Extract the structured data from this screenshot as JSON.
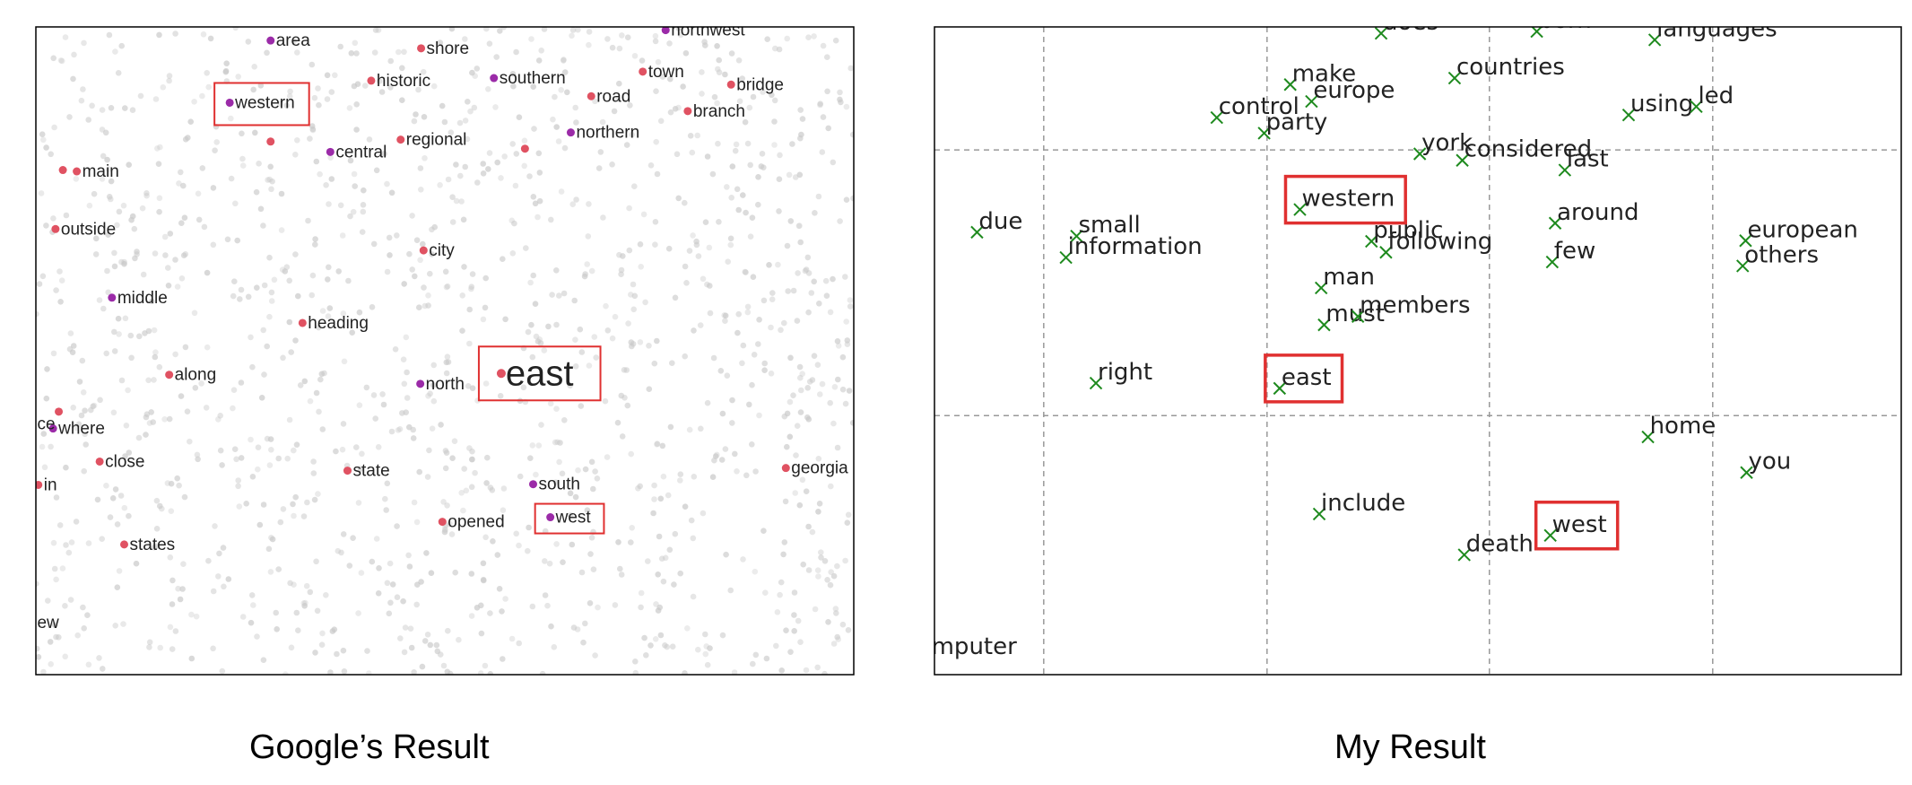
{
  "captions": {
    "left": "Google’s Result",
    "right": "My Result"
  },
  "colors": {
    "background_dot": "#c8c8c8",
    "point_red": "#e05262",
    "point_purple": "#9b2ba8",
    "marker_green": "#1e8a1e",
    "highlight_box": "#e03030",
    "grid": "#999999"
  },
  "chart_data": [
    {
      "type": "scatter",
      "title": "",
      "xlabel": "",
      "ylabel": "",
      "grid": false,
      "highlighted": [
        "western",
        "east",
        "west"
      ],
      "background_points": "dense light-gray points (unlabeled)",
      "points": [
        {
          "label": "northwest",
          "x": 0.77,
          "y": 0.005,
          "color": "purple"
        },
        {
          "label": "area",
          "x": 0.287,
          "y": 0.021,
          "color": "purple"
        },
        {
          "label": "shore",
          "x": 0.471,
          "y": 0.033,
          "color": "red"
        },
        {
          "label": "town",
          "x": 0.742,
          "y": 0.069,
          "color": "red"
        },
        {
          "label": "historic",
          "x": 0.41,
          "y": 0.083,
          "color": "red"
        },
        {
          "label": "southern",
          "x": 0.56,
          "y": 0.079,
          "color": "purple"
        },
        {
          "label": "bridge",
          "x": 0.85,
          "y": 0.089,
          "color": "red"
        },
        {
          "label": "western",
          "x": 0.237,
          "y": 0.117,
          "color": "purple"
        },
        {
          "label": "road",
          "x": 0.679,
          "y": 0.107,
          "color": "red"
        },
        {
          "label": "branch",
          "x": 0.797,
          "y": 0.13,
          "color": "red"
        },
        {
          "label": "northern",
          "x": 0.654,
          "y": 0.163,
          "color": "purple"
        },
        {
          "label": "regional",
          "x": 0.446,
          "y": 0.174,
          "color": "red"
        },
        {
          "label": "central",
          "x": 0.36,
          "y": 0.193,
          "color": "purple"
        },
        {
          "label": "main",
          "x": 0.05,
          "y": 0.223,
          "color": "red"
        },
        {
          "label": "outside",
          "x": 0.024,
          "y": 0.312,
          "color": "red"
        },
        {
          "label": "city",
          "x": 0.474,
          "y": 0.345,
          "color": "red"
        },
        {
          "label": "middle",
          "x": 0.093,
          "y": 0.418,
          "color": "purple"
        },
        {
          "label": "heading",
          "x": 0.326,
          "y": 0.457,
          "color": "red"
        },
        {
          "label": "east",
          "x": 0.569,
          "y": 0.535,
          "color": "red"
        },
        {
          "label": "along",
          "x": 0.163,
          "y": 0.537,
          "color": "red"
        },
        {
          "label": "north",
          "x": 0.47,
          "y": 0.551,
          "color": "purple"
        },
        {
          "label": "where",
          "x": 0.021,
          "y": 0.62,
          "color": "purple"
        },
        {
          "label": "close",
          "x": 0.078,
          "y": 0.671,
          "color": "red"
        },
        {
          "label": "state",
          "x": 0.381,
          "y": 0.685,
          "color": "red"
        },
        {
          "label": "georgia",
          "x": 0.917,
          "y": 0.681,
          "color": "red"
        },
        {
          "label": "south",
          "x": 0.608,
          "y": 0.706,
          "color": "purple"
        },
        {
          "label": "in",
          "x": 0.003,
          "y": 0.707,
          "color": "red"
        },
        {
          "label": "west",
          "x": 0.629,
          "y": 0.757,
          "color": "purple"
        },
        {
          "label": "opened",
          "x": 0.497,
          "y": 0.764,
          "color": "red"
        },
        {
          "label": "states",
          "x": 0.108,
          "y": 0.799,
          "color": "red"
        },
        {
          "label": "ce",
          "x": -0.005,
          "y": 0.613,
          "color": "none"
        },
        {
          "label": "ew",
          "x": -0.005,
          "y": 0.92,
          "color": "none"
        },
        {
          "label": "",
          "x": 0.287,
          "y": 0.177,
          "color": "red"
        },
        {
          "label": "",
          "x": 0.598,
          "y": 0.188,
          "color": "red"
        },
        {
          "label": "",
          "x": 0.033,
          "y": 0.221,
          "color": "red"
        },
        {
          "label": "",
          "x": 0.028,
          "y": 0.594,
          "color": "red"
        }
      ]
    },
    {
      "type": "scatter",
      "title": "",
      "xlabel": "",
      "ylabel": "",
      "grid": true,
      "marker": "x",
      "highlighted": [
        "western",
        "east",
        "west"
      ],
      "points": [
        {
          "label": "does",
          "x": 0.462,
          "y": 0.01
        },
        {
          "label": "born",
          "x": 0.623,
          "y": 0.007
        },
        {
          "label": "languages",
          "x": 0.745,
          "y": 0.02
        },
        {
          "label": "countries",
          "x": 0.538,
          "y": 0.079
        },
        {
          "label": "make",
          "x": 0.368,
          "y": 0.089
        },
        {
          "label": "europe",
          "x": 0.39,
          "y": 0.115
        },
        {
          "label": "control",
          "x": 0.292,
          "y": 0.14
        },
        {
          "label": "party",
          "x": 0.341,
          "y": 0.164
        },
        {
          "label": "using",
          "x": 0.718,
          "y": 0.136
        },
        {
          "label": "led",
          "x": 0.788,
          "y": 0.123
        },
        {
          "label": "york",
          "x": 0.502,
          "y": 0.196
        },
        {
          "label": "considered",
          "x": 0.546,
          "y": 0.206
        },
        {
          "label": "last",
          "x": 0.652,
          "y": 0.221
        },
        {
          "label": "western",
          "x": 0.378,
          "y": 0.282
        },
        {
          "label": "due",
          "x": 0.044,
          "y": 0.317
        },
        {
          "label": "small",
          "x": 0.147,
          "y": 0.323
        },
        {
          "label": "information",
          "x": 0.136,
          "y": 0.356
        },
        {
          "label": "public",
          "x": 0.452,
          "y": 0.331
        },
        {
          "label": "following",
          "x": 0.467,
          "y": 0.348
        },
        {
          "label": "around",
          "x": 0.642,
          "y": 0.303
        },
        {
          "label": "few",
          "x": 0.639,
          "y": 0.363
        },
        {
          "label": "european",
          "x": 0.839,
          "y": 0.33
        },
        {
          "label": "others",
          "x": 0.836,
          "y": 0.369
        },
        {
          "label": "man",
          "x": 0.4,
          "y": 0.403
        },
        {
          "label": "must",
          "x": 0.403,
          "y": 0.46
        },
        {
          "label": "members",
          "x": 0.438,
          "y": 0.447
        },
        {
          "label": "right",
          "x": 0.167,
          "y": 0.55
        },
        {
          "label": "east",
          "x": 0.357,
          "y": 0.558
        },
        {
          "label": "home",
          "x": 0.738,
          "y": 0.633
        },
        {
          "label": "you",
          "x": 0.84,
          "y": 0.688
        },
        {
          "label": "include",
          "x": 0.398,
          "y": 0.752
        },
        {
          "label": "west",
          "x": 0.637,
          "y": 0.785
        },
        {
          "label": "death",
          "x": 0.548,
          "y": 0.815
        },
        {
          "label": "mputer",
          "x": -0.005,
          "y": 0.974,
          "marker": false
        }
      ]
    }
  ]
}
